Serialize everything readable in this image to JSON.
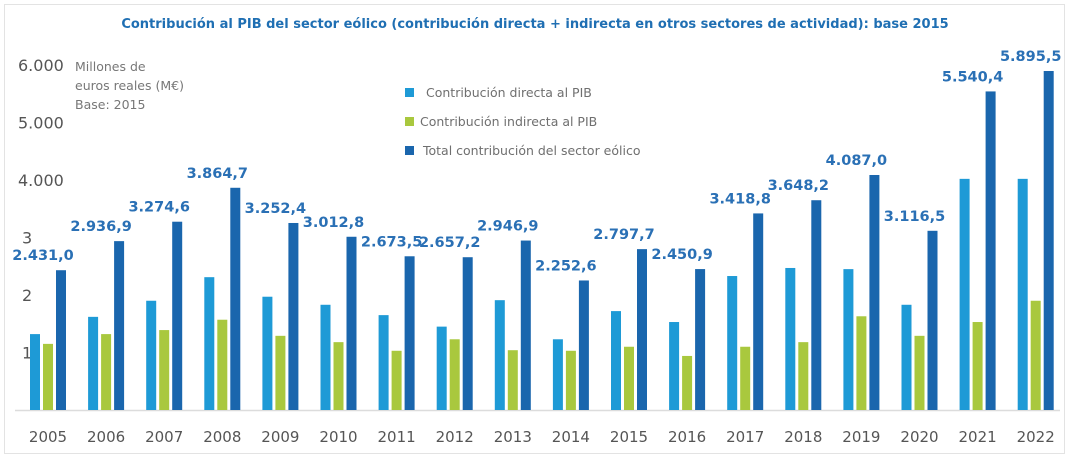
{
  "chart_data": {
    "type": "bar",
    "title": "Contribución al PIB del sector eólico (contribución directa + indirecta en otros sectores de actividad): base 2015",
    "ylabel_note": [
      "Millones de",
      "euros reales (M€)",
      "Base: 2015"
    ],
    "xlabel": "",
    "ylim": [
      0,
      6000
    ],
    "yticks": [
      {
        "value": 1000,
        "label": "1"
      },
      {
        "value": 2000,
        "label": "2"
      },
      {
        "value": 3000,
        "label": "3"
      },
      {
        "value": 4000,
        "label": "4.000"
      },
      {
        "value": 5000,
        "label": "5.000"
      },
      {
        "value": 6000,
        "label": "6.000"
      }
    ],
    "grid": false,
    "legend_position": "top-center",
    "categories": [
      "2005",
      "2006",
      "2007",
      "2008",
      "2009",
      "2010",
      "2011",
      "2012",
      "2013",
      "2014",
      "2015",
      "2016",
      "2017",
      "2018",
      "2019",
      "2020",
      "2021",
      "2022"
    ],
    "series": [
      {
        "name": "Contribución directa al PIB",
        "color": "#1e9ad6",
        "values": [
          1320,
          1620,
          1900,
          2310,
          1970,
          1830,
          1650,
          1450,
          1910,
          1230,
          1720,
          1530,
          2330,
          2470,
          2450,
          1830,
          4020,
          4020
        ]
      },
      {
        "name": "Contribución indirecta al PIB",
        "color": "#a9c83e",
        "values": [
          1150,
          1320,
          1390,
          1570,
          1290,
          1180,
          1030,
          1230,
          1040,
          1030,
          1100,
          940,
          1100,
          1180,
          1630,
          1290,
          1530,
          1900
        ]
      },
      {
        "name": "Total contribución del sector eólico",
        "color": "#1a66ad",
        "values": [
          2431.0,
          2936.9,
          3274.6,
          3864.7,
          3252.4,
          3012.8,
          2673.5,
          2657.2,
          2946.9,
          2252.6,
          2797.7,
          2450.9,
          3418.8,
          3648.2,
          4087.0,
          3116.5,
          5540.4,
          5895.5
        ],
        "labels": [
          "2.431,0",
          "2.936,9",
          "3.274,6",
          "3.864,7",
          "3.252,4",
          "3.012,8",
          "2.673,5",
          "2.657,2",
          "2.946,9",
          "2.252,6",
          "2.797,7",
          "2.450,9",
          "3.418,8",
          "3.648,2",
          "4.087,0",
          "3.116,5",
          "5.540,4",
          "5.895,5"
        ]
      }
    ]
  }
}
